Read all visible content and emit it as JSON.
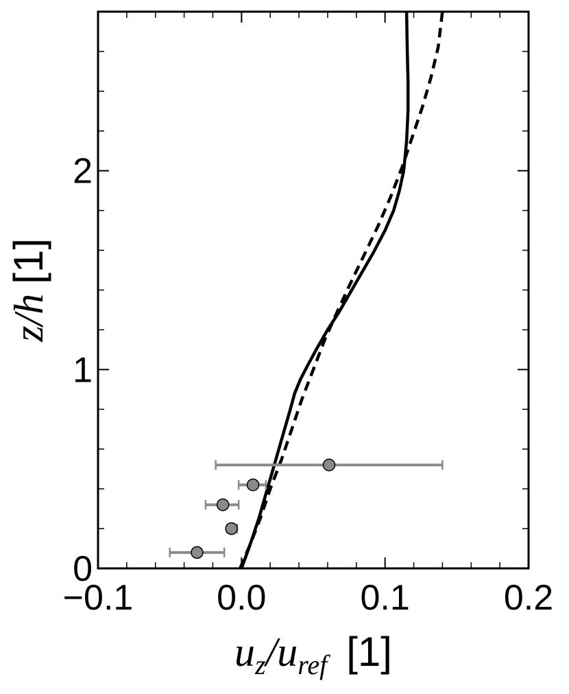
{
  "chart_data": {
    "type": "line",
    "xlabel_parts": {
      "base": "u",
      "sub1": "z",
      "slash": "/",
      "base2": "u",
      "sub2": "ref",
      "unit": "[1]"
    },
    "ylabel_parts": {
      "var1": "z",
      "slash": "/",
      "var2": "h",
      "unit": "[1]"
    },
    "xlim": [
      -0.1,
      0.2
    ],
    "ylim": [
      0,
      2.8
    ],
    "x_ticks": [
      -0.1,
      0.0,
      0.1,
      0.2
    ],
    "x_tick_labels": [
      "−0.1",
      "0.0",
      "0.1",
      "0.2"
    ],
    "y_ticks": [
      0,
      1,
      2
    ],
    "y_tick_labels": [
      "0",
      "1",
      "2"
    ],
    "x_minor_step": 0.02,
    "y_minor_step": 0.2,
    "grid": false,
    "series": [
      {
        "style": "solid",
        "color": "#000000",
        "x": [
          0.0,
          0.006,
          0.012,
          0.018,
          0.024,
          0.03,
          0.034,
          0.037,
          0.041,
          0.046,
          0.052,
          0.06,
          0.068,
          0.076,
          0.084,
          0.092,
          0.1,
          0.106,
          0.11,
          0.113,
          0.115,
          0.116,
          0.116,
          0.1155,
          0.115
        ],
        "y": [
          0.0,
          0.12,
          0.25,
          0.4,
          0.55,
          0.7,
          0.8,
          0.88,
          0.95,
          1.02,
          1.1,
          1.2,
          1.29,
          1.39,
          1.49,
          1.59,
          1.7,
          1.8,
          1.9,
          2.0,
          2.15,
          2.3,
          2.45,
          2.6,
          2.8
        ]
      },
      {
        "style": "dashed",
        "color": "#000000",
        "x": [
          -0.001,
          0.006,
          0.013,
          0.02,
          0.028,
          0.035,
          0.042,
          0.05,
          0.058,
          0.066,
          0.075,
          0.085,
          0.095,
          0.104,
          0.112,
          0.119,
          0.126,
          0.132,
          0.137,
          0.14
        ],
        "y": [
          0.0,
          0.12,
          0.25,
          0.4,
          0.55,
          0.7,
          0.85,
          1.0,
          1.15,
          1.28,
          1.42,
          1.57,
          1.72,
          1.87,
          2.02,
          2.17,
          2.32,
          2.47,
          2.62,
          2.8
        ]
      }
    ],
    "errorbar_points": {
      "color": "#8a8a8a",
      "points": [
        {
          "x": -0.031,
          "y": 0.08,
          "xerr_low": -0.05,
          "xerr_high": -0.012
        },
        {
          "x": -0.007,
          "y": 0.2,
          "xerr_low": -0.01,
          "xerr_high": -0.003
        },
        {
          "x": -0.013,
          "y": 0.32,
          "xerr_low": -0.025,
          "xerr_high": -0.002
        },
        {
          "x": 0.008,
          "y": 0.42,
          "xerr_low": -0.002,
          "xerr_high": 0.017
        },
        {
          "x": 0.061,
          "y": 0.52,
          "xerr_low": -0.018,
          "xerr_high": 0.14
        }
      ]
    }
  }
}
